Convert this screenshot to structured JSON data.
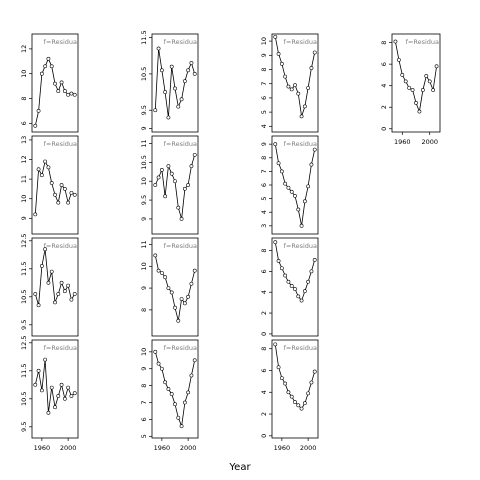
{
  "xlabel": "Year",
  "chart_data": {
    "type": "line",
    "xlabel": "Year",
    "grid": false,
    "panels": [
      {
        "row": 0,
        "col": 0,
        "annotation": "f=Residua",
        "x_ticks": [],
        "y_ticks": [
          6,
          8,
          10,
          12
        ],
        "ylim": [
          5.3,
          13.2
        ],
        "x": [
          1950,
          1955,
          1960,
          1965,
          1970,
          1975,
          1980,
          1985,
          1990,
          1995,
          2000,
          2005,
          2010
        ],
        "values": [
          5.8,
          7.0,
          10.0,
          10.6,
          11.2,
          10.6,
          9.2,
          8.6,
          9.3,
          8.6,
          8.3,
          8.4,
          8.3
        ]
      },
      {
        "row": 0,
        "col": 1,
        "annotation": "f=Residua",
        "x_ticks": [],
        "y_ticks": [
          9.0,
          9.5,
          10.5,
          11.5
        ],
        "ylim": [
          8.9,
          11.6
        ],
        "x": [
          1950,
          1955,
          1960,
          1965,
          1970,
          1975,
          1980,
          1985,
          1990,
          1995,
          2000,
          2005,
          2010
        ],
        "values": [
          9.5,
          11.2,
          10.6,
          10.0,
          9.3,
          10.7,
          10.1,
          9.6,
          9.8,
          10.3,
          10.6,
          10.8,
          10.5
        ]
      },
      {
        "row": 0,
        "col": 2,
        "annotation": "f=Residua",
        "x_ticks": [],
        "y_ticks": [
          4,
          5,
          6,
          7,
          8,
          9,
          10
        ],
        "ylim": [
          3.6,
          10.5
        ],
        "x": [
          1950,
          1955,
          1960,
          1965,
          1970,
          1975,
          1980,
          1985,
          1990,
          1995,
          2000,
          2005,
          2010
        ],
        "values": [
          10.3,
          9.1,
          8.4,
          7.5,
          6.8,
          6.6,
          6.9,
          6.3,
          4.7,
          5.4,
          6.7,
          8.1,
          9.2
        ]
      },
      {
        "row": 0,
        "col": 3,
        "annotation": "f=Residua",
        "x_ticks": [
          1960,
          2000
        ],
        "y_ticks": [
          0,
          2,
          4,
          6,
          8
        ],
        "ylim": [
          -0.3,
          8.8
        ],
        "x": [
          1950,
          1955,
          1960,
          1965,
          1970,
          1975,
          1980,
          1985,
          1990,
          1995,
          2000,
          2005,
          2010
        ],
        "values": [
          8.1,
          6.4,
          5.0,
          4.4,
          3.8,
          3.6,
          2.4,
          1.6,
          3.6,
          4.9,
          4.4,
          3.6,
          5.8
        ]
      },
      {
        "row": 1,
        "col": 0,
        "annotation": "f=Residua",
        "x_ticks": [],
        "y_ticks": [
          9,
          10,
          11,
          12,
          13
        ],
        "ylim": [
          8.2,
          13.2
        ],
        "x": [
          1950,
          1955,
          1960,
          1965,
          1970,
          1975,
          1980,
          1985,
          1990,
          1995,
          2000,
          2005,
          2010
        ],
        "values": [
          9.2,
          11.5,
          11.2,
          11.9,
          11.6,
          10.8,
          10.2,
          9.8,
          10.7,
          10.5,
          9.8,
          10.3,
          10.2
        ]
      },
      {
        "row": 1,
        "col": 1,
        "annotation": "f=Residua",
        "x_ticks": [],
        "y_ticks": [
          9.0,
          9.5,
          10.0,
          10.5,
          11.0
        ],
        "ylim": [
          8.6,
          11.2
        ],
        "x": [
          1950,
          1955,
          1960,
          1965,
          1970,
          1975,
          1980,
          1985,
          1990,
          1995,
          2000,
          2005,
          2010
        ],
        "values": [
          9.9,
          10.1,
          10.3,
          9.6,
          10.4,
          10.2,
          10.0,
          9.3,
          9.0,
          9.8,
          9.9,
          10.4,
          10.7
        ]
      },
      {
        "row": 1,
        "col": 2,
        "annotation": "f=Residua",
        "x_ticks": [],
        "y_ticks": [
          3,
          4,
          5,
          6,
          7,
          8,
          9
        ],
        "ylim": [
          2.4,
          9.6
        ],
        "x": [
          1950,
          1955,
          1960,
          1965,
          1970,
          1975,
          1980,
          1985,
          1990,
          1995,
          2000,
          2005,
          2010
        ],
        "values": [
          9.0,
          7.6,
          7.0,
          6.1,
          5.8,
          5.5,
          5.2,
          4.2,
          3.0,
          4.8,
          5.9,
          7.5,
          8.6
        ]
      },
      {
        "row": 2,
        "col": 0,
        "annotation": "f=Residua",
        "x_ticks": [],
        "y_ticks": [
          9.5,
          10.5,
          11.5,
          12.5
        ],
        "ylim": [
          9.1,
          12.6
        ],
        "x": [
          1950,
          1955,
          1960,
          1965,
          1970,
          1975,
          1980,
          1985,
          1990,
          1995,
          2000,
          2005,
          2010
        ],
        "values": [
          10.6,
          10.2,
          11.6,
          12.2,
          11.0,
          11.4,
          10.3,
          10.6,
          11.0,
          10.7,
          10.9,
          10.4,
          10.6
        ]
      },
      {
        "row": 2,
        "col": 1,
        "annotation": "f=Residua",
        "x_ticks": [],
        "y_ticks": [
          8,
          9,
          10,
          11
        ],
        "ylim": [
          6.8,
          11.3
        ],
        "x": [
          1950,
          1955,
          1960,
          1965,
          1970,
          1975,
          1980,
          1985,
          1990,
          1995,
          2000,
          2005,
          2010
        ],
        "values": [
          10.5,
          9.8,
          9.7,
          9.5,
          9.0,
          8.8,
          8.1,
          7.5,
          8.5,
          8.3,
          8.6,
          9.2,
          9.8
        ]
      },
      {
        "row": 2,
        "col": 2,
        "annotation": "f=Residua",
        "x_ticks": [],
        "y_ticks": [
          0,
          2,
          4,
          6,
          8
        ],
        "ylim": [
          -0.2,
          9.2
        ],
        "x": [
          1950,
          1955,
          1960,
          1965,
          1970,
          1975,
          1980,
          1985,
          1990,
          1995,
          2000,
          2005,
          2010
        ],
        "values": [
          8.8,
          7.0,
          6.3,
          5.6,
          5.0,
          4.6,
          4.3,
          3.6,
          3.2,
          4.1,
          5.0,
          6.0,
          7.1
        ]
      },
      {
        "row": 3,
        "col": 0,
        "annotation": "f=Residua",
        "x_ticks": [
          1960,
          2000
        ],
        "y_ticks": [
          9.5,
          10.5,
          11.5,
          12.5
        ],
        "ylim": [
          9.1,
          12.6
        ],
        "x": [
          1950,
          1955,
          1960,
          1965,
          1970,
          1975,
          1980,
          1985,
          1990,
          1995,
          2000,
          2005,
          2010
        ],
        "values": [
          11.0,
          11.5,
          10.8,
          11.9,
          10.0,
          10.9,
          10.2,
          10.6,
          11.0,
          10.5,
          10.9,
          10.6,
          10.7
        ]
      },
      {
        "row": 3,
        "col": 1,
        "annotation": "f=Residua",
        "x_ticks": [
          1960,
          2000
        ],
        "y_ticks": [
          5,
          6,
          7,
          8,
          9,
          10
        ],
        "ylim": [
          4.9,
          10.7
        ],
        "x": [
          1950,
          1955,
          1960,
          1965,
          1970,
          1975,
          1980,
          1985,
          1990,
          1995,
          2000,
          2005,
          2010
        ],
        "values": [
          10.0,
          9.3,
          9.0,
          8.2,
          7.8,
          7.5,
          6.9,
          6.1,
          5.6,
          7.0,
          7.6,
          8.6,
          9.5
        ]
      },
      {
        "row": 3,
        "col": 2,
        "annotation": "f=Residua",
        "x_ticks": [
          1960,
          2000
        ],
        "y_ticks": [
          0,
          2,
          4,
          6,
          8
        ],
        "ylim": [
          -0.2,
          8.8
        ],
        "x": [
          1950,
          1955,
          1960,
          1965,
          1970,
          1975,
          1980,
          1985,
          1990,
          1995,
          2000,
          2005,
          2010
        ],
        "values": [
          8.4,
          6.3,
          5.3,
          4.8,
          4.0,
          3.6,
          3.1,
          2.8,
          2.5,
          3.0,
          3.9,
          4.9,
          5.9
        ]
      }
    ]
  }
}
